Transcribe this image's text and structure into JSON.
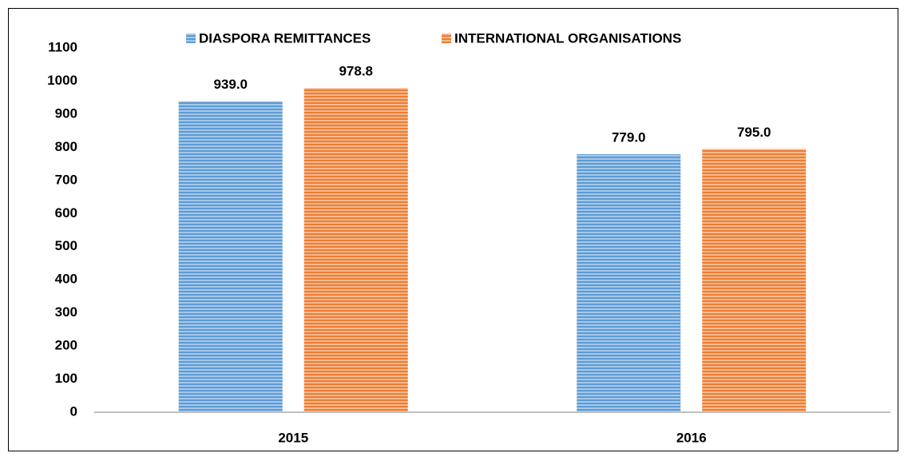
{
  "chart_data": {
    "type": "bar",
    "categories": [
      "2015",
      "2016"
    ],
    "series": [
      {
        "name": "DIASPORA REMITTANCES",
        "color": "#5b9bd5",
        "values": [
          939,
          779
        ],
        "value_labels": [
          "939.0",
          "779.0"
        ]
      },
      {
        "name": "INTERNATIONAL ORGANISATIONS",
        "color": "#ed7d31",
        "values": [
          978.8,
          795
        ],
        "value_labels": [
          "978.8",
          "795.0"
        ]
      }
    ],
    "ylim": [
      0,
      1100
    ],
    "yticks": [
      0,
      100,
      200,
      300,
      400,
      500,
      600,
      700,
      800,
      900,
      1000,
      1100
    ],
    "grid": false,
    "legend": "top"
  }
}
